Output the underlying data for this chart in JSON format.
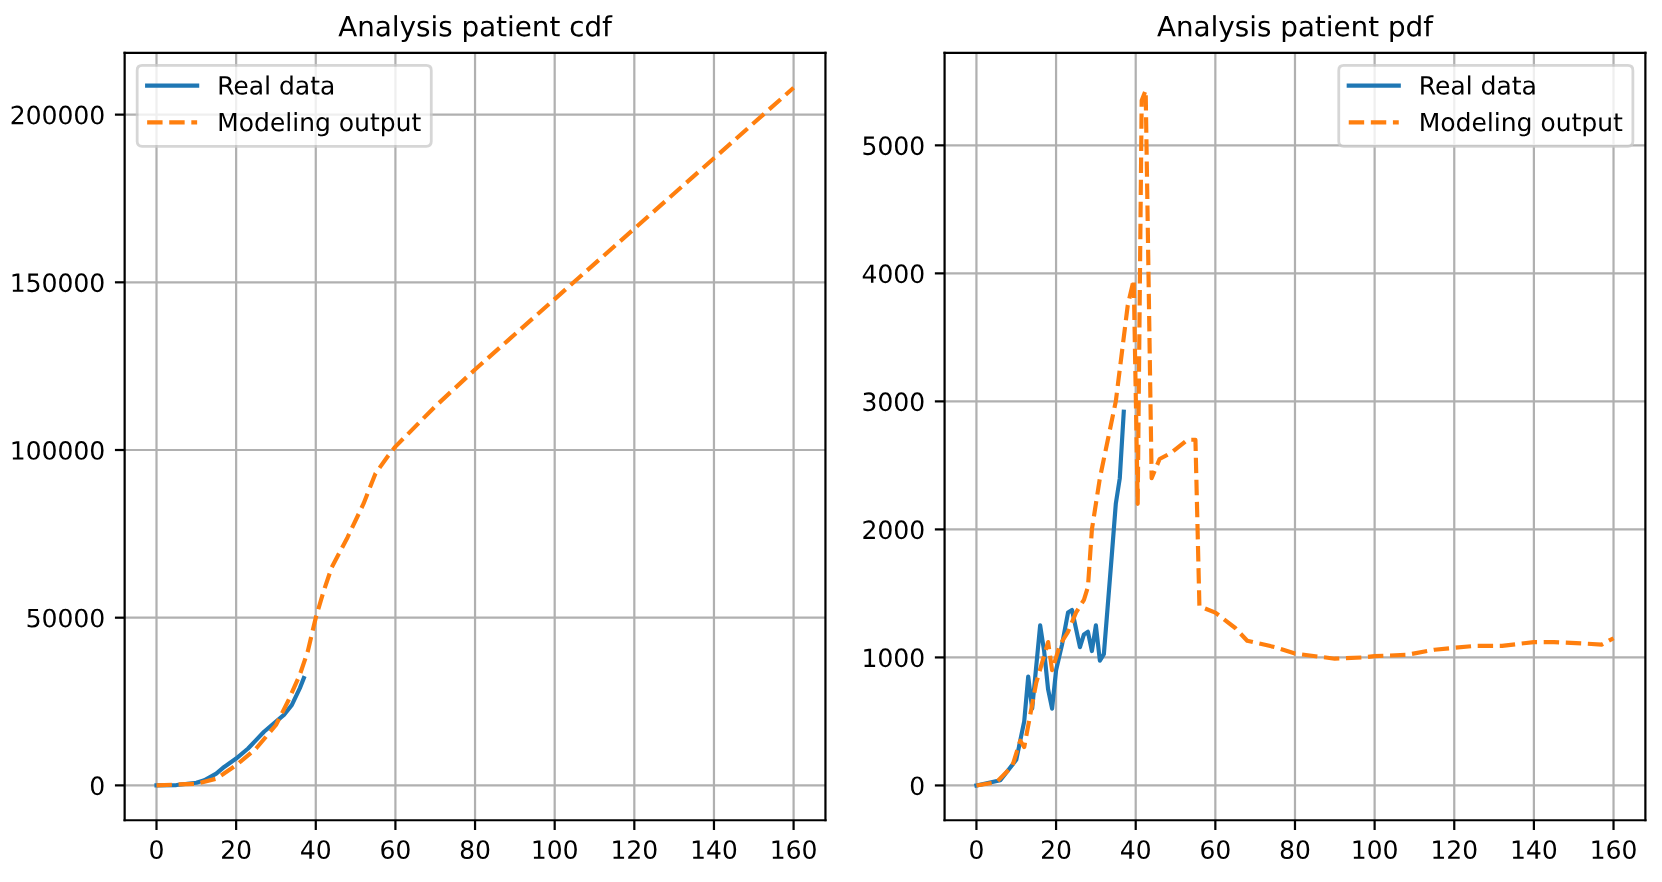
{
  "chart_data": [
    {
      "type": "line",
      "title": "Analysis patient cdf",
      "xlim": [
        -8,
        168
      ],
      "xticks": [
        0,
        20,
        40,
        60,
        80,
        100,
        120,
        140,
        160
      ],
      "ylim": [
        -10400,
        218400
      ],
      "yticks": [
        0,
        50000,
        100000,
        150000,
        200000
      ],
      "grid": true,
      "legend": "top left",
      "series": [
        {
          "name": "Real data",
          "color": "#1f77b4",
          "line_style": "solid",
          "x": [
            0,
            5,
            10,
            12,
            15,
            17,
            20,
            23,
            25,
            27,
            30,
            32,
            34,
            36,
            37
          ],
          "values": [
            0,
            100,
            800,
            1500,
            3500,
            5500,
            8000,
            11000,
            13500,
            16000,
            19000,
            21000,
            24000,
            29000,
            32000
          ]
        },
        {
          "name": "Modeling output",
          "color": "#ff7f0e",
          "line_style": "dashed",
          "x": [
            0,
            10,
            15,
            20,
            25,
            30,
            33,
            36,
            38,
            40,
            42,
            44,
            48,
            52,
            55,
            58,
            60,
            70,
            80,
            100,
            120,
            140,
            160
          ],
          "values": [
            0,
            500,
            2000,
            6000,
            11000,
            18000,
            25000,
            33000,
            40000,
            50000,
            58000,
            65000,
            74000,
            84000,
            93000,
            98000,
            101000,
            113000,
            124000,
            145000,
            166000,
            187000,
            208000
          ]
        }
      ]
    },
    {
      "type": "line",
      "title": "Analysis patient pdf",
      "xlim": [
        -8,
        168
      ],
      "xticks": [
        0,
        20,
        40,
        60,
        80,
        100,
        120,
        140,
        160
      ],
      "ylim": [
        -272,
        5722
      ],
      "yticks": [
        0,
        1000,
        2000,
        3000,
        4000,
        5000
      ],
      "grid": true,
      "legend": "top right",
      "series": [
        {
          "name": "Real data",
          "color": "#1f77b4",
          "line_style": "solid",
          "x": [
            0,
            6,
            10,
            12,
            13,
            14,
            16,
            17,
            18,
            19,
            20,
            21.5,
            23,
            24,
            26,
            27,
            28,
            29,
            30,
            31,
            32,
            34,
            35,
            36,
            37
          ],
          "values": [
            0,
            40,
            200,
            500,
            850,
            600,
            1250,
            1050,
            750,
            600,
            900,
            1100,
            1350,
            1370,
            1080,
            1180,
            1200,
            1050,
            1250,
            975,
            1025,
            1800,
            2200,
            2400,
            2920
          ]
        },
        {
          "name": "Modeling output",
          "color": "#ff7f0e",
          "line_style": "dashed",
          "x": [
            0,
            5,
            9,
            11,
            12,
            15,
            18,
            19,
            21,
            23,
            25,
            27,
            28,
            29,
            31,
            33,
            35,
            38,
            39.5,
            40.5,
            41.5,
            42.5,
            44,
            46,
            49,
            53,
            55,
            56,
            60,
            65,
            68,
            75,
            80,
            90,
            97,
            100,
            108,
            115,
            125,
            132,
            140,
            145,
            152,
            157,
            160
          ],
          "values": [
            0,
            25,
            150,
            350,
            300,
            800,
            1120,
            900,
            1100,
            1200,
            1350,
            1450,
            1550,
            2000,
            2400,
            2700,
            3000,
            3750,
            3950,
            2200,
            5350,
            5430,
            2400,
            2550,
            2600,
            2700,
            2700,
            1400,
            1350,
            1230,
            1130,
            1080,
            1030,
            990,
            1000,
            1010,
            1020,
            1060,
            1090,
            1090,
            1120,
            1120,
            1110,
            1100,
            1150
          ]
        }
      ]
    }
  ]
}
